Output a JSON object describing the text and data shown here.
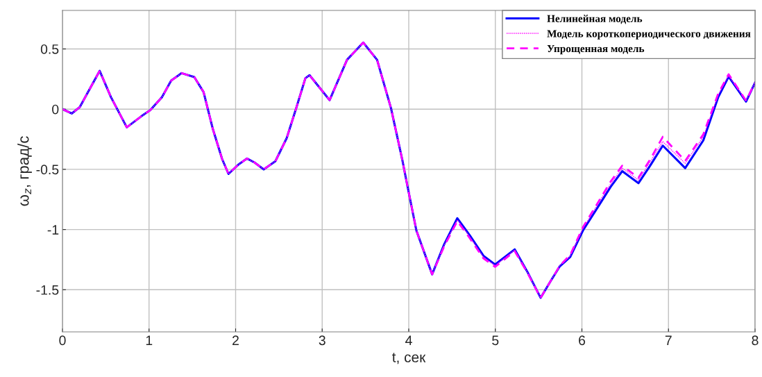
{
  "chart_data": {
    "type": "line",
    "xlabel": "t, сек",
    "ylabel": "ω$_{z}$, град/с",
    "x": [
      0,
      0.107,
      0.2,
      0.43,
      0.56,
      0.743,
      0.91,
      1.015,
      1.15,
      1.256,
      1.376,
      1.523,
      1.63,
      1.737,
      1.844,
      1.918,
      2.03,
      2.132,
      2.218,
      2.325,
      2.459,
      2.59,
      2.7,
      2.806,
      2.854,
      3.086,
      3.287,
      3.474,
      3.634,
      3.795,
      3.928,
      3.981,
      4.088,
      4.27,
      4.409,
      4.561,
      4.703,
      4.863,
      4.997,
      5.224,
      5.371,
      5.523,
      5.638,
      5.745,
      5.865,
      6.012,
      6.199,
      6.333,
      6.466,
      6.653,
      6.787,
      6.934,
      7.193,
      7.402,
      7.575,
      7.695,
      7.896,
      8
    ],
    "series": [
      {
        "name": "Нелинейная модель",
        "color": "#0000ff",
        "line_style": "solid",
        "values": [
          0,
          -0.036,
          0.017,
          0.318,
          0.1,
          -0.151,
          -0.06,
          -0.008,
          0.1,
          0.237,
          0.299,
          0.266,
          0.142,
          -0.165,
          -0.414,
          -0.538,
          -0.462,
          -0.41,
          -0.443,
          -0.5,
          -0.433,
          -0.241,
          0.008,
          0.257,
          0.282,
          0.075,
          0.41,
          0.553,
          0.41,
          0.008,
          -0.43,
          -0.625,
          -1.008,
          -1.372,
          -1.123,
          -0.906,
          -1.046,
          -1.218,
          -1.291,
          -1.165,
          -1.352,
          -1.567,
          -1.429,
          -1.305,
          -1.228,
          -1.008,
          -0.797,
          -0.644,
          -0.515,
          -0.615,
          -0.471,
          -0.303,
          -0.49,
          -0.26,
          0.1,
          0.27,
          0.063,
          0.22
        ]
      },
      {
        "name": "Модель короткопериодического движения",
        "color": "#ff00ff",
        "line_style": "dotted",
        "values": [
          0,
          -0.036,
          0.017,
          0.318,
          0.1,
          -0.151,
          -0.06,
          -0.008,
          0.1,
          0.237,
          0.299,
          0.266,
          0.142,
          -0.165,
          -0.414,
          -0.538,
          -0.462,
          -0.41,
          -0.443,
          -0.5,
          -0.433,
          -0.241,
          0.008,
          0.257,
          0.282,
          0.075,
          0.41,
          0.553,
          0.41,
          0.008,
          -0.43,
          -0.625,
          -1.008,
          -1.372,
          -1.13,
          -0.92,
          -1.06,
          -1.23,
          -1.3,
          -1.17,
          -1.355,
          -1.567,
          -1.429,
          -1.3,
          -1.22,
          -0.99,
          -0.77,
          -0.62,
          -0.49,
          -0.59,
          -0.44,
          -0.27,
          -0.45,
          -0.23,
          0.12,
          0.28,
          0.07,
          0.22
        ]
      },
      {
        "name": "Упрощенная модель",
        "color": "#ff00ff",
        "line_style": "dashed",
        "values": [
          0,
          -0.036,
          0.017,
          0.318,
          0.1,
          -0.151,
          -0.06,
          -0.008,
          0.1,
          0.237,
          0.299,
          0.266,
          0.142,
          -0.165,
          -0.414,
          -0.538,
          -0.462,
          -0.41,
          -0.443,
          -0.5,
          -0.433,
          -0.241,
          0.008,
          0.257,
          0.282,
          0.075,
          0.41,
          0.553,
          0.41,
          0.008,
          -0.43,
          -0.625,
          -1.008,
          -1.372,
          -1.14,
          -0.93,
          -1.07,
          -1.24,
          -1.31,
          -1.18,
          -1.36,
          -1.567,
          -1.429,
          -1.3,
          -1.21,
          -0.98,
          -0.76,
          -0.6,
          -0.47,
          -0.57,
          -0.42,
          -0.23,
          -0.43,
          -0.21,
          0.13,
          0.29,
          0.07,
          0.22
        ]
      }
    ],
    "xlim": [
      0,
      8
    ],
    "xticks": [
      0,
      1,
      2,
      3,
      4,
      5,
      6,
      7,
      8
    ],
    "ylim": [
      -1.85,
      0.82
    ],
    "yticks": [
      -1.5,
      -1,
      -0.5,
      0,
      0.5
    ],
    "grid": true,
    "legend": "top right"
  }
}
